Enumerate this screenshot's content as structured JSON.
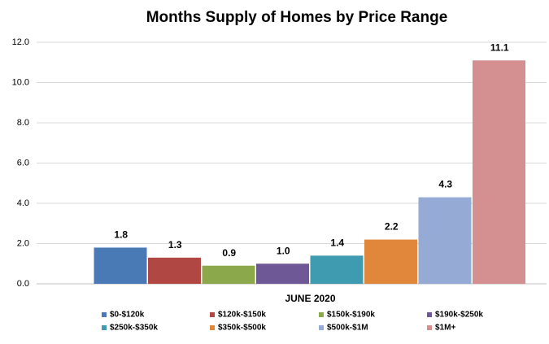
{
  "chart_data": {
    "type": "bar",
    "title": "Months Supply of Homes by Price Range",
    "categories": [
      "JUNE 2020"
    ],
    "series": [
      {
        "name": "$0-$120k",
        "color": "#4a7ab5",
        "values": [
          1.8
        ],
        "value_labels": [
          "1.8"
        ]
      },
      {
        "name": "$120k-$150k",
        "color": "#b04743",
        "values": [
          1.3
        ],
        "value_labels": [
          "1.3"
        ]
      },
      {
        "name": "$150k-$190k",
        "color": "#8ba84a",
        "values": [
          0.9
        ],
        "value_labels": [
          "0.9"
        ]
      },
      {
        "name": "$190k-$250k",
        "color": "#6e5896",
        "values": [
          1.0
        ],
        "value_labels": [
          "1.0"
        ]
      },
      {
        "name": "$250k-$350k",
        "color": "#3e9bb0",
        "values": [
          1.4
        ],
        "value_labels": [
          "1.4"
        ]
      },
      {
        "name": "$350k-$500k",
        "color": "#e0873c",
        "values": [
          2.2
        ],
        "value_labels": [
          "2.2"
        ]
      },
      {
        "name": "$500k-$1M",
        "color": "#95abd5",
        "values": [
          4.3
        ],
        "value_labels": [
          "4.3"
        ]
      },
      {
        "name": "$1M+",
        "color": "#d49090",
        "values": [
          11.1
        ],
        "value_labels": [
          "11.1"
        ]
      }
    ],
    "ylim": [
      0,
      12
    ],
    "yticks": [
      {
        "value": 0,
        "label": "0.0"
      },
      {
        "value": 2,
        "label": "2.0"
      },
      {
        "value": 4,
        "label": "4.0"
      },
      {
        "value": 6,
        "label": "6.0"
      },
      {
        "value": 8,
        "label": "8.0"
      },
      {
        "value": 10,
        "label": "10.0"
      },
      {
        "value": 12,
        "label": "12.0"
      }
    ],
    "grid": true,
    "legend": "bottom"
  }
}
